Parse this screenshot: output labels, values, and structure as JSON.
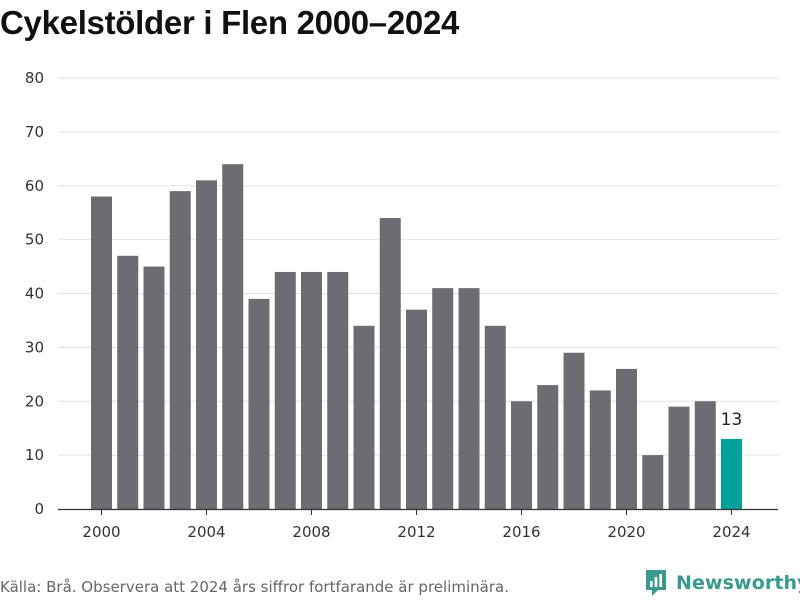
{
  "chart_data": {
    "type": "bar",
    "title": "Cykelstölder i Flen 2000–2024",
    "xlabel": "",
    "ylabel": "",
    "categories": [
      2000,
      2001,
      2002,
      2003,
      2004,
      2005,
      2006,
      2007,
      2008,
      2009,
      2010,
      2011,
      2012,
      2013,
      2014,
      2015,
      2016,
      2017,
      2018,
      2019,
      2020,
      2021,
      2022,
      2023,
      2024
    ],
    "values": [
      58,
      47,
      45,
      59,
      61,
      64,
      39,
      44,
      44,
      44,
      34,
      54,
      37,
      41,
      41,
      34,
      20,
      23,
      29,
      22,
      26,
      10,
      19,
      20,
      13
    ],
    "ylim": [
      0,
      80
    ],
    "yticks": [
      0,
      10,
      20,
      30,
      40,
      50,
      60,
      70,
      80
    ],
    "xticks": [
      2000,
      2004,
      2008,
      2012,
      2016,
      2020,
      2024
    ],
    "grid": true,
    "highlight": {
      "category": 2024,
      "label": "13"
    },
    "colors": {
      "bar": "#6d6c72",
      "highlight": "#00a19a",
      "grid": "#e2e2e2",
      "axis": "#333333"
    }
  },
  "footer": {
    "source": "Källa: Brå. Observera att 2024 års siffror fortfarande är preliminära.",
    "brand": "Newsworthy",
    "brand_icon": "newsworthy-logo-icon"
  }
}
